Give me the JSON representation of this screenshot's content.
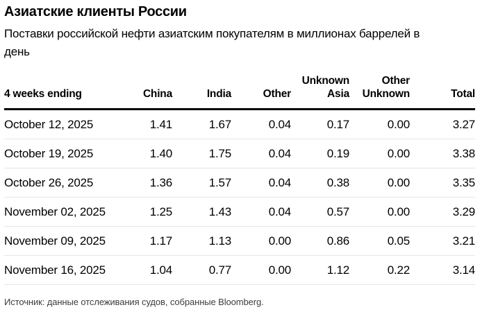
{
  "header": {
    "title": "Азиатские клиенты России",
    "subtitle": "Поставки российской нефти азиатским покупателям в миллионах баррелей в день"
  },
  "table": {
    "columns": [
      "4 weeks ending",
      "China",
      "India",
      "Other",
      "Unknown Asia",
      "Other Unknown",
      "Total"
    ],
    "rows": [
      {
        "date": "October 12, 2025",
        "values": [
          "1.41",
          "1.67",
          "0.04",
          "0.17",
          "0.00",
          "3.27"
        ]
      },
      {
        "date": "October 19, 2025",
        "values": [
          "1.40",
          "1.75",
          "0.04",
          "0.19",
          "0.00",
          "3.38"
        ]
      },
      {
        "date": "October 26, 2025",
        "values": [
          "1.36",
          "1.57",
          "0.04",
          "0.38",
          "0.00",
          "3.35"
        ]
      },
      {
        "date": "November 02, 2025",
        "values": [
          "1.25",
          "1.43",
          "0.04",
          "0.57",
          "0.00",
          "3.29"
        ]
      },
      {
        "date": "November 09, 2025",
        "values": [
          "1.17",
          "1.13",
          "0.00",
          "0.86",
          "0.05",
          "3.21"
        ]
      },
      {
        "date": "November 16, 2025",
        "values": [
          "1.04",
          "0.77",
          "0.00",
          "1.12",
          "0.22",
          "3.14"
        ]
      }
    ]
  },
  "source": "Источник: данные отслеживания судов, собранные Bloomberg.",
  "colors": {
    "text": "#000000",
    "header_rule": "#000000",
    "row_separator": "#e6e6e6",
    "source_text": "#3d3d3d",
    "background": "#ffffff"
  },
  "chart_data": {
    "type": "table",
    "title": "Азиатские клиенты России",
    "subtitle": "Поставки российской нефти азиатским покупателям в миллионах баррелей в день",
    "columns": [
      "4 weeks ending",
      "China",
      "India",
      "Other",
      "Unknown Asia",
      "Other Unknown",
      "Total"
    ],
    "rows": [
      [
        "October 12, 2025",
        1.41,
        1.67,
        0.04,
        0.17,
        0.0,
        3.27
      ],
      [
        "October 19, 2025",
        1.4,
        1.75,
        0.04,
        0.19,
        0.0,
        3.38
      ],
      [
        "October 26, 2025",
        1.36,
        1.57,
        0.04,
        0.38,
        0.0,
        3.35
      ],
      [
        "November 02, 2025",
        1.25,
        1.43,
        0.04,
        0.57,
        0.0,
        3.29
      ],
      [
        "November 09, 2025",
        1.17,
        1.13,
        0.0,
        0.86,
        0.05,
        3.21
      ],
      [
        "November 16, 2025",
        1.04,
        0.77,
        0.0,
        1.12,
        0.22,
        3.14
      ]
    ],
    "units": "million barrels per day",
    "source": "Источник: данные отслеживания судов, собранные Bloomberg."
  }
}
